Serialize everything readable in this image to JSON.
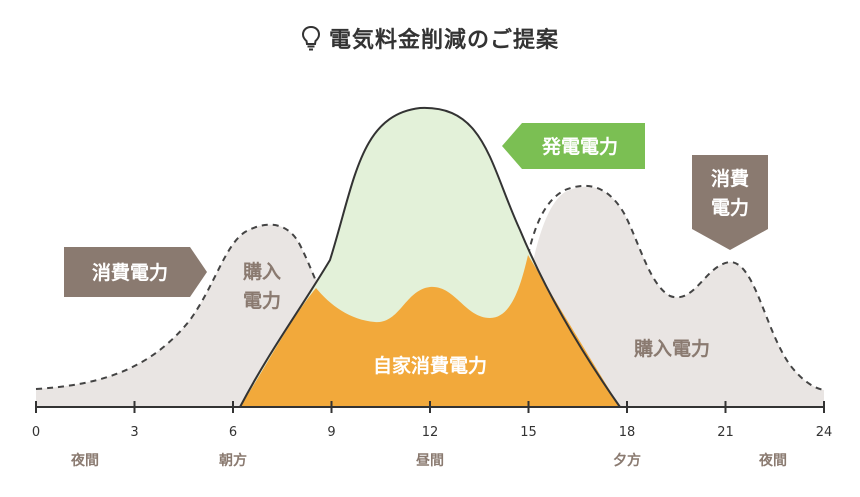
{
  "title": "電気料金削減のご提案",
  "labels": {
    "generation": "発電電力",
    "consumption_left": "消費電力",
    "consumption_right_line1": "消費",
    "consumption_right_line2": "電力",
    "purchase_left_line1": "購入",
    "purchase_left_line2": "電力",
    "purchase_right": "購入電力",
    "self_consumption": "自家消費電力"
  },
  "axis": {
    "ticks": [
      "0",
      "3",
      "6",
      "9",
      "12",
      "15",
      "18",
      "21",
      "24"
    ],
    "periods": [
      "夜間",
      "朝方",
      "昼間",
      "夕方",
      "夜間"
    ]
  },
  "colors": {
    "generation_fill": "#e3f1d9",
    "generation_label": "#7bbf53",
    "consumption_fill": "#e9e5e3",
    "self_consumption_fill": "#f2a93b",
    "arrow_label": "#8a7a70",
    "line": "#333333"
  },
  "icons": {
    "title": "lightbulb-icon"
  }
}
